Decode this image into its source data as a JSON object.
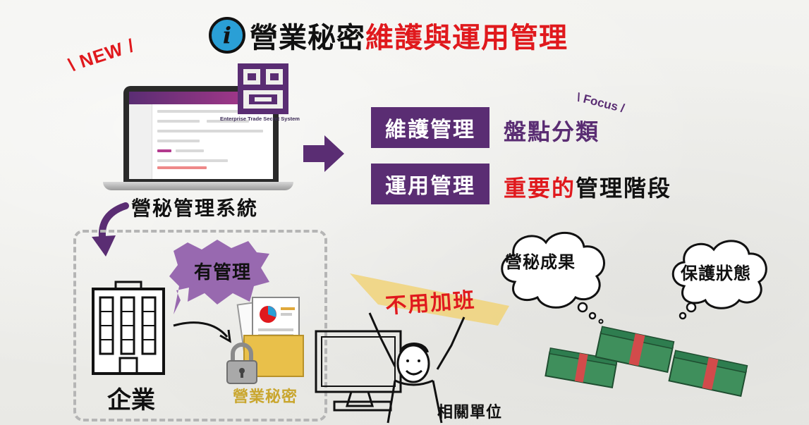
{
  "title": {
    "icon": "i",
    "part1": "營業秘密",
    "part2": "維護與運用管理"
  },
  "new_label": "\\ NEW /",
  "system": {
    "label": "營秘管理系統",
    "logo_caption": "Enterprise Trade Secret System"
  },
  "focus_label": "\\ Focus /",
  "rows": [
    {
      "pill": "維護管理",
      "text": "盤點分類"
    },
    {
      "pill": "運用管理",
      "text_red": "重要的",
      "text_black": "管理階段"
    }
  ],
  "left_group": {
    "bubble": "有管理",
    "company": "企業",
    "secret": "營業秘密"
  },
  "middle": {
    "overtime": "不用加班",
    "dept": "相關單位"
  },
  "clouds": [
    "營秘成果",
    "保護狀態"
  ],
  "colors": {
    "purple": "#5a2d73",
    "red": "#e0191d",
    "blue": "#2a9fd6",
    "gold": "#c9a62e",
    "money_green": "#2e7d4f"
  },
  "icons": [
    "info-icon",
    "laptop-icon",
    "arrow-right-icon",
    "arrow-down-icon",
    "building-icon",
    "document-icon",
    "padlock-icon",
    "person-icon",
    "monitor-icon",
    "thought-cloud-icon",
    "money-stack-icon"
  ]
}
